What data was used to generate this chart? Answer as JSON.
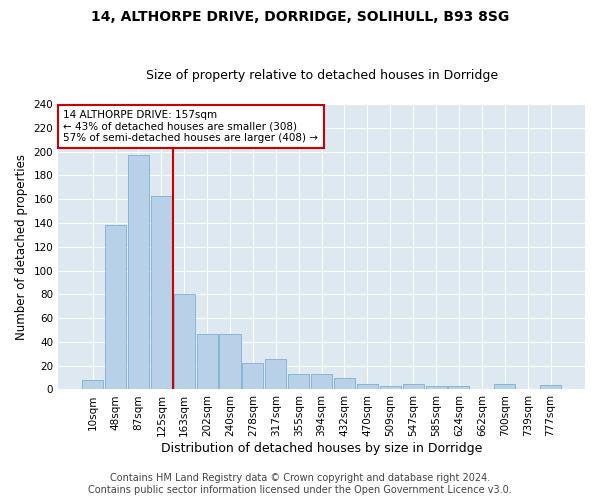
{
  "title1": "14, ALTHORPE DRIVE, DORRIDGE, SOLIHULL, B93 8SG",
  "title2": "Size of property relative to detached houses in Dorridge",
  "xlabel": "Distribution of detached houses by size in Dorridge",
  "ylabel": "Number of detached properties",
  "categories": [
    "10sqm",
    "48sqm",
    "87sqm",
    "125sqm",
    "163sqm",
    "202sqm",
    "240sqm",
    "278sqm",
    "317sqm",
    "355sqm",
    "394sqm",
    "432sqm",
    "470sqm",
    "509sqm",
    "547sqm",
    "585sqm",
    "624sqm",
    "662sqm",
    "700sqm",
    "739sqm",
    "777sqm"
  ],
  "values": [
    8,
    138,
    197,
    163,
    80,
    47,
    47,
    22,
    26,
    13,
    13,
    10,
    5,
    3,
    5,
    3,
    3,
    0,
    5,
    0,
    4
  ],
  "bar_color": "#b8d0e8",
  "bar_edge_color": "#7aafd4",
  "vline_index": 4,
  "vline_color": "#cc0000",
  "annotation_text": "14 ALTHORPE DRIVE: 157sqm\n← 43% of detached houses are smaller (308)\n57% of semi-detached houses are larger (408) →",
  "annotation_box_color": "#ffffff",
  "annotation_box_edge": "#cc0000",
  "ylim": [
    0,
    240
  ],
  "yticks": [
    0,
    20,
    40,
    60,
    80,
    100,
    120,
    140,
    160,
    180,
    200,
    220,
    240
  ],
  "background_color": "#dde8f0",
  "grid_color": "#ffffff",
  "footer_line1": "Contains HM Land Registry data © Crown copyright and database right 2024.",
  "footer_line2": "Contains public sector information licensed under the Open Government Licence v3.0.",
  "title1_fontsize": 10,
  "title2_fontsize": 9,
  "xlabel_fontsize": 9,
  "ylabel_fontsize": 8.5,
  "tick_fontsize": 7.5,
  "annotation_fontsize": 7.5,
  "footer_fontsize": 7
}
